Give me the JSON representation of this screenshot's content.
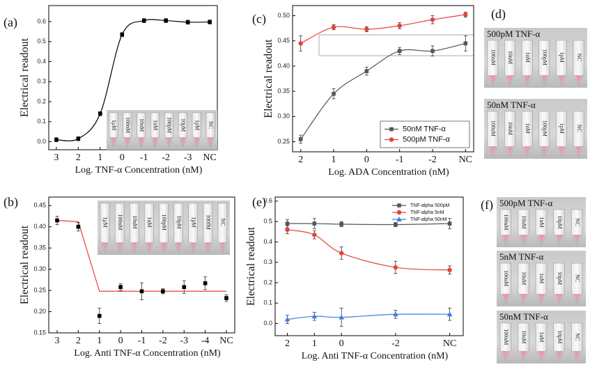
{
  "chart_data": [
    {
      "type": "line",
      "panel_label": "(a)",
      "ylabel": "Electrical readout",
      "xlabel": "Log. TNF-α  Concentration (nM)",
      "categories": [
        "3",
        "2",
        "1",
        "0",
        "-1",
        "-2",
        "-3",
        "NC"
      ],
      "ylim": [
        -0.04,
        0.68
      ],
      "yticks": [
        {
          "value": 0,
          "label": "0.0"
        },
        0.1,
        0.2,
        0.3,
        0.4,
        0.5,
        0.6
      ],
      "series": [
        {
          "color": "#000000",
          "marker": "square",
          "curve": true,
          "values": [
            0.01,
            0.015,
            0.14,
            0.535,
            0.605,
            0.605,
            0.597,
            0.598
          ],
          "errors": [
            0.01,
            0.01,
            0.01,
            0.01,
            0.01,
            0.01,
            0.01,
            0.01
          ]
        }
      ],
      "inset_tubes": [
        "1μM",
        "100nM",
        "10nM",
        "1nM",
        "100pM",
        "10pM",
        "1pM",
        "NC"
      ]
    },
    {
      "type": "line",
      "panel_label": "(b)",
      "ylabel": "Electrical readout",
      "xlabel": "Log. Anti TNF-α  Concentration (nM)",
      "categories": [
        "3",
        "2",
        "1",
        "0",
        "-1",
        "-2",
        "-3",
        "-4",
        "NC"
      ],
      "ylim": [
        0.15,
        0.47
      ],
      "yticks": [
        0.15,
        {
          "value": 0.2,
          "label": "0.20"
        },
        0.25,
        {
          "value": 0.3,
          "label": "0.30"
        },
        0.35,
        {
          "value": 0.4,
          "label": "0.40"
        },
        0.45
      ],
      "series": [
        {
          "color": "#000000",
          "marker": "square",
          "line": false,
          "values": [
            0.415,
            0.4,
            0.19,
            0.258,
            0.248,
            0.248,
            0.258,
            0.267,
            0.232
          ],
          "errors": [
            0.01,
            0.01,
            0.018,
            0.008,
            0.02,
            0.006,
            0.015,
            0.015,
            0.008
          ]
        }
      ],
      "fit": {
        "color": "#e8403a",
        "values": [
          0.415,
          0.412,
          0.248,
          0.248,
          0.248,
          0.248,
          0.248,
          0.248,
          0.248
        ]
      },
      "inset_tubes": [
        "1μM",
        "100nM",
        "10nM",
        "1nM",
        "100pM",
        "10pM",
        "1pM",
        "100fM",
        "NC"
      ]
    },
    {
      "type": "line",
      "panel_label": "(c)",
      "ylabel": "Electrical readout",
      "xlabel": "Log. ADA  Concentration (nM)",
      "categories": [
        "2",
        "1",
        "0",
        "-1",
        "-2",
        "NC"
      ],
      "ylim": [
        0.23,
        0.52
      ],
      "yticks": [
        0.25,
        {
          "value": 0.3,
          "label": "0.30"
        },
        0.35,
        {
          "value": 0.4,
          "label": "0.40"
        },
        0.45,
        {
          "value": 0.5,
          "label": "0.50"
        }
      ],
      "legend": "lower right",
      "series": [
        {
          "name": "50nM TNF-α",
          "color": "#555555",
          "marker": "square",
          "curve": true,
          "values": [
            0.255,
            0.345,
            0.39,
            0.43,
            0.43,
            0.445
          ],
          "errors": [
            0.008,
            0.01,
            0.008,
            0.007,
            0.01,
            0.015
          ]
        },
        {
          "name": "500pM TNF-α",
          "color": "#e8403a",
          "marker": "circle",
          "curve": true,
          "values": [
            0.445,
            0.477,
            0.473,
            0.48,
            0.492,
            0.502
          ],
          "errors": [
            0.015,
            0.005,
            0.005,
            0.006,
            0.008,
            0.005
          ]
        }
      ]
    },
    {
      "type": "line",
      "panel_label": "(e)",
      "ylabel": "Electrical readout",
      "xlabel": "Log. Anti TNF-α  Concentration (nM)",
      "x": [
        2,
        1,
        0,
        -2,
        -4
      ],
      "xlim": [
        2.45,
        -4.5
      ],
      "xticks": [
        2,
        1,
        0,
        -2,
        {
          "value": -4,
          "label": "NC"
        }
      ],
      "ylim": [
        -0.06,
        0.62
      ],
      "yticks": [
        {
          "value": 0,
          "label": "0.0"
        },
        0.1,
        0.2,
        0.3,
        0.4,
        0.5,
        0.6
      ],
      "legend": "upper right",
      "series": [
        {
          "name": "TNF-alpha 500pM",
          "color": "#555555",
          "marker": "square",
          "curve": true,
          "values": [
            0.49,
            0.49,
            0.487,
            0.485,
            0.49
          ],
          "errors": [
            0.02,
            0.025,
            0.012,
            0.01,
            0.025
          ]
        },
        {
          "name": "TNF-alpha 5nM",
          "color": "#e8403a",
          "marker": "circle",
          "curve": true,
          "values": [
            0.46,
            0.435,
            0.345,
            0.275,
            0.262
          ],
          "errors": [
            0.02,
            0.02,
            0.03,
            0.03,
            0.02
          ]
        },
        {
          "name": "TNF-alpha 50nM",
          "color": "#3a7fe0",
          "marker": "triangle",
          "curve": true,
          "values": [
            0.02,
            0.035,
            0.03,
            0.045,
            0.045
          ],
          "errors": [
            0.02,
            0.02,
            0.045,
            0.02,
            0.03
          ]
        }
      ]
    }
  ],
  "photo_panels": [
    {
      "panel_label": "(d)",
      "groups": [
        {
          "title": "500pM TNF-α",
          "tubes": [
            "100nM",
            "10nM",
            "1nM",
            "100pM",
            "1pM",
            "NC"
          ]
        },
        {
          "title": "50nM TNF-α",
          "tubes": [
            "100nM",
            "10nM",
            "1nM",
            "100pM",
            "1pM",
            "NC"
          ]
        }
      ]
    },
    {
      "panel_label": "(f)",
      "groups": [
        {
          "title": "500pM TNF-α",
          "tubes": [
            "100nM",
            "10nM",
            "1nM",
            "10pM",
            "NC"
          ]
        },
        {
          "title": "5nM TNF-α",
          "tubes": [
            "100nM",
            "10nM",
            "1nM",
            "10pM",
            "NC"
          ]
        },
        {
          "title": "50nM TNF-α",
          "tubes": [
            "100nM",
            "10nM",
            "1nM",
            "10pM",
            "NC"
          ]
        }
      ]
    }
  ]
}
